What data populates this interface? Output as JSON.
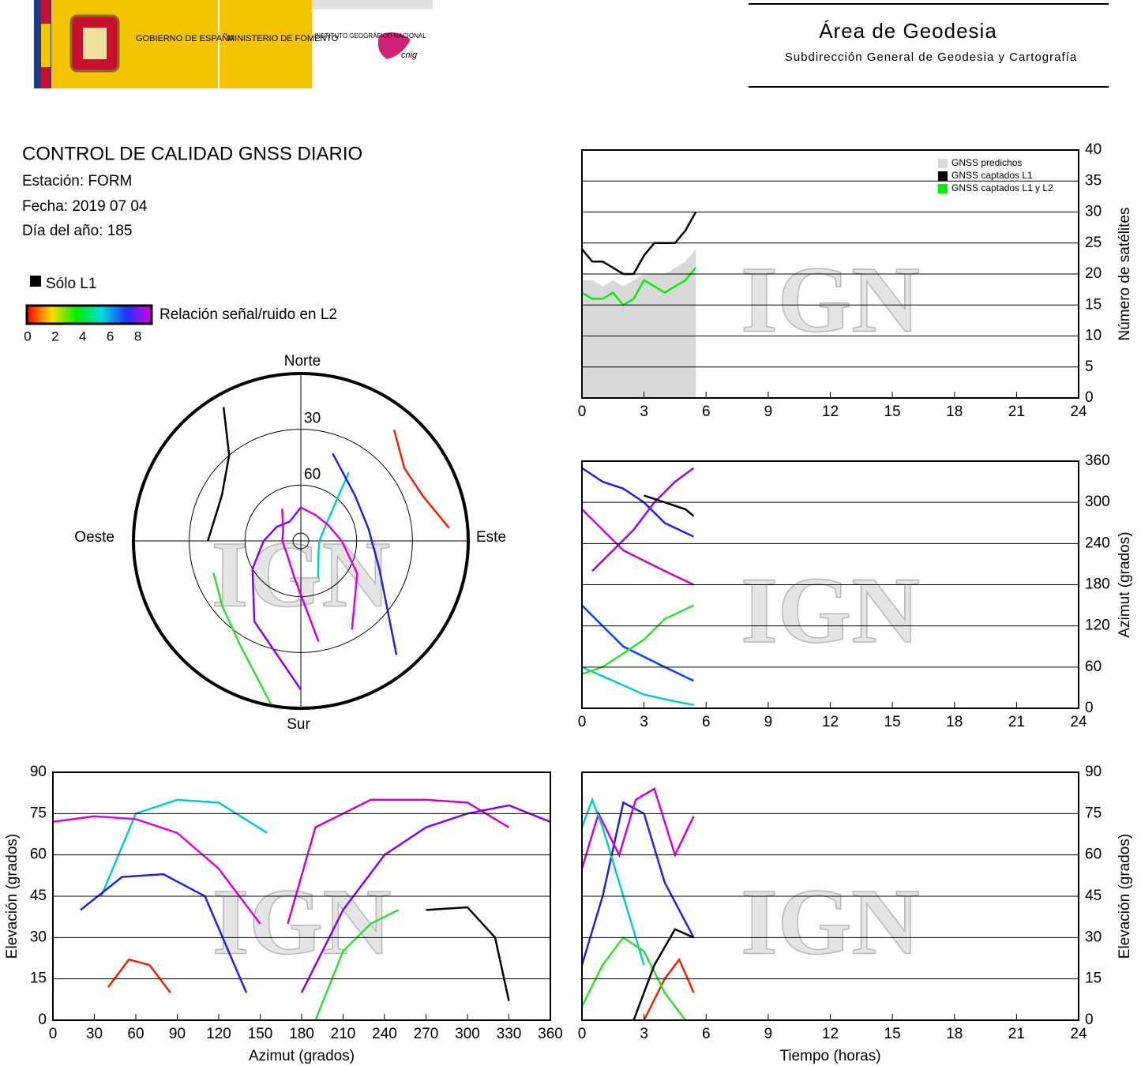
{
  "header": {
    "gov": "GOBIERNO DE ESPAÑA",
    "ministry": "MINISTERIO DE FOMENTO",
    "institute": "INSTITUTO GEOGRÁFICO NACIONAL",
    "cnig": "cnig",
    "area": "Área de Geodesia",
    "subarea": "Subdirección General de Geodesia y Cartografía"
  },
  "report": {
    "title": "CONTROL DE CALIDAD GNSS DIARIO",
    "station": "Estación: FORM",
    "date": "Fecha: 2019 07 04",
    "doy": "Día del año: 185",
    "l1_only": "Sólo L1",
    "colorbar_label": "Relación señal/ruido en L2",
    "colorbar_lim": [
      0,
      9
    ],
    "colorbar_ticks": [
      0,
      2,
      4,
      6,
      8
    ],
    "watermark": "IGN"
  },
  "chart_data": [
    {
      "type": "line",
      "xlim": [
        0,
        24
      ],
      "xticks": [
        0,
        3,
        6,
        9,
        12,
        15,
        18,
        21,
        24
      ],
      "ylim": [
        0,
        40
      ],
      "yticks": [
        0,
        5,
        10,
        15,
        20,
        25,
        30,
        35,
        40
      ],
      "ylabel": "Número de satélites",
      "y_side": "right",
      "grid": true,
      "legend": "top-right",
      "x": [
        0,
        0.5,
        1,
        1.5,
        2,
        2.5,
        3,
        3.5,
        4,
        4.5,
        5,
        5.5
      ],
      "series": [
        {
          "name": "GNSS predichos",
          "color": "#d9d9d9",
          "area": true,
          "values": [
            19,
            19,
            18,
            19,
            18,
            19,
            20,
            20,
            20,
            21,
            22,
            24
          ]
        },
        {
          "name": "GNSS captados L1",
          "color": "#000000",
          "values": [
            24,
            22,
            22,
            21,
            20,
            20,
            23,
            25,
            25,
            25,
            27,
            30
          ]
        },
        {
          "name": "GNSS captados L1 y L2",
          "color": "#00ee00",
          "values": [
            17,
            16,
            16,
            17,
            15,
            16,
            19,
            18,
            17,
            18,
            19,
            21
          ]
        }
      ]
    },
    {
      "type": "line",
      "xlim": [
        0,
        24
      ],
      "xticks": [
        0,
        3,
        6,
        9,
        12,
        15,
        18,
        21,
        24
      ],
      "ylim": [
        0,
        360
      ],
      "yticks": [
        0,
        60,
        120,
        180,
        240,
        300,
        360
      ],
      "ylabel": "Azimut (grados)",
      "y_side": "right",
      "grid": true,
      "series": [
        {
          "color": "#cc00cc",
          "x": [
            0,
            1,
            2,
            3,
            4,
            5.4
          ],
          "values": [
            290,
            260,
            230,
            215,
            200,
            180
          ]
        },
        {
          "color": "#2222dd",
          "x": [
            0,
            1,
            2,
            3,
            4,
            5.4
          ],
          "values": [
            350,
            330,
            320,
            300,
            270,
            250
          ]
        },
        {
          "color": "#00cccc",
          "x": [
            0,
            1.5,
            3,
            4.5,
            5.4
          ],
          "values": [
            60,
            40,
            20,
            10,
            5
          ]
        },
        {
          "color": "#0044ff",
          "x": [
            0,
            1,
            2,
            3,
            4,
            5.4
          ],
          "values": [
            150,
            120,
            90,
            75,
            60,
            40
          ]
        },
        {
          "color": "#33dd33",
          "x": [
            0,
            1,
            2,
            3,
            4,
            5.4
          ],
          "values": [
            50,
            60,
            80,
            100,
            130,
            150
          ]
        },
        {
          "color": "#9900ee",
          "x": [
            0.5,
            1.5,
            2.5,
            3.5,
            4.5,
            5.4
          ],
          "values": [
            200,
            230,
            260,
            300,
            330,
            350
          ]
        },
        {
          "color": "#000000",
          "x": [
            3,
            4,
            5,
            5.4
          ],
          "values": [
            310,
            300,
            290,
            280
          ]
        }
      ]
    },
    {
      "type": "line",
      "xlim": [
        0,
        360
      ],
      "xticks": [
        0,
        30,
        60,
        90,
        120,
        150,
        180,
        210,
        240,
        270,
        300,
        330,
        360
      ],
      "ylim": [
        0,
        90
      ],
      "yticks": [
        0,
        15,
        30,
        45,
        60,
        75,
        90
      ],
      "xlabel": "Azimut (grados)",
      "ylabel": "Elevación (grados)",
      "y_side": "left",
      "grid": true,
      "series": [
        {
          "color": "#00cccc",
          "x": [
            35,
            60,
            90,
            120,
            155
          ],
          "values": [
            45,
            75,
            80,
            79,
            68
          ]
        },
        {
          "color": "#dd00dd",
          "x": [
            0,
            30,
            60,
            90,
            120,
            150
          ],
          "values": [
            72,
            74,
            73,
            68,
            55,
            35
          ]
        },
        {
          "color": "#cc00cc",
          "x": [
            170,
            190,
            230,
            270,
            300,
            330
          ],
          "values": [
            35,
            70,
            80,
            80,
            79,
            70
          ]
        },
        {
          "color": "#8800ee",
          "x": [
            180,
            210,
            240,
            270,
            300,
            330,
            360
          ],
          "values": [
            10,
            40,
            60,
            70,
            75,
            78,
            72
          ]
        },
        {
          "color": "#2222dd",
          "x": [
            20,
            50,
            80,
            110,
            140
          ],
          "values": [
            40,
            52,
            53,
            45,
            10
          ]
        },
        {
          "color": "#ee2200",
          "x": [
            40,
            55,
            70,
            85
          ],
          "values": [
            12,
            22,
            20,
            10
          ]
        },
        {
          "color": "#000000",
          "x": [
            270,
            300,
            320,
            330
          ],
          "values": [
            40,
            41,
            30,
            7
          ]
        },
        {
          "color": "#33dd33",
          "x": [
            190,
            210,
            230,
            250
          ],
          "values": [
            0,
            25,
            35,
            40
          ]
        }
      ]
    },
    {
      "type": "line",
      "xlim": [
        0,
        24
      ],
      "xticks": [
        0,
        3,
        6,
        9,
        12,
        15,
        18,
        21,
        24
      ],
      "ylim": [
        0,
        90
      ],
      "yticks": [
        0,
        15,
        30,
        45,
        60,
        75,
        90
      ],
      "xlabel": "Tiempo (horas)",
      "ylabel": "Elevación (grados)",
      "y_side": "right",
      "grid": true,
      "series": [
        {
          "color": "#2222dd",
          "x": [
            0,
            1,
            2,
            3,
            4,
            5.4
          ],
          "values": [
            20,
            45,
            79,
            75,
            50,
            30
          ]
        },
        {
          "color": "#cc00cc",
          "x": [
            0,
            0.8,
            1.8,
            2.6,
            3.5,
            4.5,
            5.4
          ],
          "values": [
            55,
            75,
            60,
            80,
            84,
            60,
            74
          ]
        },
        {
          "color": "#00cccc",
          "x": [
            0,
            0.5,
            1,
            2,
            3
          ],
          "values": [
            70,
            80,
            70,
            45,
            20
          ]
        },
        {
          "color": "#ee2200",
          "x": [
            3,
            4,
            4.7,
            5.4
          ],
          "values": [
            0,
            15,
            22,
            10
          ]
        },
        {
          "color": "#33dd33",
          "x": [
            0,
            1,
            2,
            3,
            4,
            5
          ],
          "values": [
            5,
            20,
            30,
            25,
            10,
            0
          ]
        },
        {
          "color": "#000000",
          "x": [
            2.5,
            3.5,
            4.5,
            5.4
          ],
          "values": [
            0,
            20,
            33,
            30
          ]
        }
      ]
    },
    {
      "type": "polar",
      "directions": {
        "north": "Norte",
        "south": "Sur",
        "west": "Oeste",
        "east": "Este"
      },
      "rlim": [
        0,
        90
      ],
      "rticks": [
        30,
        60
      ],
      "series": [
        {
          "color": "#00cccc",
          "x": [
            35,
            60,
            90,
            120,
            155
          ],
          "values": [
            45,
            75,
            80,
            79,
            68
          ]
        },
        {
          "color": "#dd00dd",
          "x": [
            0,
            30,
            60,
            90,
            120,
            150
          ],
          "values": [
            72,
            74,
            73,
            68,
            55,
            35
          ]
        },
        {
          "color": "#cc00cc",
          "x": [
            170,
            190,
            230,
            270,
            300,
            330
          ],
          "values": [
            35,
            70,
            80,
            80,
            79,
            70
          ]
        },
        {
          "color": "#8800ee",
          "x": [
            180,
            210,
            240,
            270,
            300,
            330,
            360
          ],
          "values": [
            10,
            40,
            60,
            70,
            75,
            78,
            72
          ]
        },
        {
          "color": "#2222dd",
          "x": [
            20,
            50,
            80,
            110,
            140
          ],
          "values": [
            40,
            52,
            53,
            45,
            10
          ]
        },
        {
          "color": "#ee2200",
          "x": [
            40,
            55,
            70,
            85
          ],
          "values": [
            12,
            22,
            20,
            10
          ]
        },
        {
          "color": "#000000",
          "x": [
            270,
            300,
            320,
            330
          ],
          "values": [
            40,
            41,
            30,
            7
          ]
        },
        {
          "color": "#33dd33",
          "x": [
            190,
            210,
            230,
            250
          ],
          "values": [
            0,
            25,
            35,
            40
          ]
        }
      ]
    }
  ]
}
